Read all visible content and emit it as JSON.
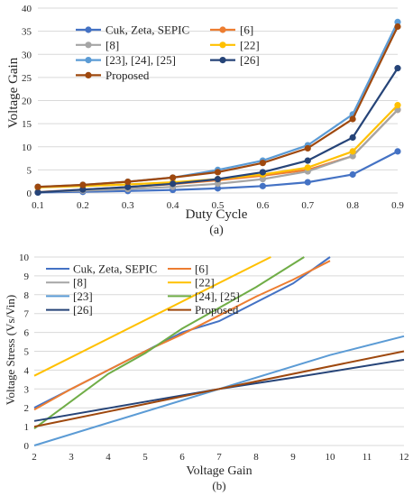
{
  "chart_data": [
    {
      "type": "line",
      "caption": "(a)",
      "xlabel": "Duty Cycle",
      "ylabel": "Voltage Gain",
      "xlim": [
        0.1,
        0.9
      ],
      "ylim": [
        0,
        40
      ],
      "x_ticks": [
        "0.1",
        "0.2",
        "0.3",
        "0.4",
        "0.5",
        "0.6",
        "0.7",
        "0.8",
        "0.9"
      ],
      "y_ticks": [
        "0",
        "5",
        "10",
        "15",
        "20",
        "25",
        "30",
        "35",
        "40"
      ],
      "grid": "horizontal",
      "legend": "top-left",
      "markers": true,
      "x": [
        0.1,
        0.2,
        0.3,
        0.4,
        0.5,
        0.6,
        0.7,
        0.8,
        0.9
      ],
      "series": [
        {
          "name": "Cuk, Zeta, SEPIC",
          "color": "#4472C4",
          "values": [
            0.11,
            0.25,
            0.43,
            0.67,
            1.0,
            1.5,
            2.33,
            4.0,
            9.0
          ]
        },
        {
          "name": "[6]",
          "color": "#ED7D31",
          "values": [
            0.22,
            0.75,
            1.29,
            1.93,
            2.75,
            3.75,
            5.0,
            8.0,
            18.0
          ]
        },
        {
          "name": "[8]",
          "color": "#A5A5A5",
          "values": [
            0.22,
            0.5,
            0.86,
            1.33,
            2.0,
            3.0,
            4.67,
            8.0,
            18.0
          ]
        },
        {
          "name": "[22]",
          "color": "#FFC000",
          "values": [
            1.2,
            1.5,
            1.86,
            2.33,
            3.0,
            4.0,
            5.5,
            9.0,
            19.0
          ]
        },
        {
          "name": "[23], [24], [25]",
          "color": "#5B9BD5",
          "values": [
            1.33,
            1.75,
            2.43,
            3.33,
            5.0,
            7.0,
            10.33,
            17.0,
            37.0
          ]
        },
        {
          "name": "[26]",
          "color": "#264478",
          "values": [
            0.11,
            0.75,
            1.29,
            2.0,
            3.0,
            4.5,
            7.0,
            12.0,
            27.0
          ]
        },
        {
          "name": "Proposed",
          "color": "#9E480E",
          "values": [
            1.33,
            1.75,
            2.43,
            3.33,
            4.5,
            6.5,
            9.67,
            16.0,
            36.0
          ]
        }
      ]
    },
    {
      "type": "line",
      "caption": "(b)",
      "xlabel": "Voltage Gain",
      "ylabel": "Voltage Stress (Vs/Vin)",
      "xlim": [
        2,
        12
      ],
      "ylim": [
        0,
        10
      ],
      "x_ticks": [
        "2",
        "3",
        "4",
        "5",
        "6",
        "7",
        "8",
        "9",
        "10",
        "11",
        "12"
      ],
      "y_ticks": [
        "0",
        "1",
        "2",
        "3",
        "4",
        "5",
        "6",
        "7",
        "8",
        "9",
        "10"
      ],
      "grid": "horizontal",
      "legend": "top-left",
      "markers": false,
      "series": [
        {
          "name": "Cuk, Zeta, SEPIC",
          "color": "#4472C4",
          "points": [
            [
              2,
              2.0
            ],
            [
              6,
              6.0
            ],
            [
              7,
              6.6
            ],
            [
              9,
              8.6
            ],
            [
              10,
              10.0
            ]
          ]
        },
        {
          "name": "[6]",
          "color": "#ED7D31",
          "points": [
            [
              2,
              1.9
            ],
            [
              3,
              3.0
            ],
            [
              4,
              4.0
            ],
            [
              5,
              5.0
            ],
            [
              6,
              5.9
            ],
            [
              7,
              6.9
            ],
            [
              8,
              7.9
            ],
            [
              9,
              8.8
            ],
            [
              10,
              9.8
            ]
          ]
        },
        {
          "name": "[8]",
          "color": "#A5A5A5",
          "points": []
        },
        {
          "name": "[22]",
          "color": "#FFC000",
          "points": [
            [
              2,
              3.7
            ],
            [
              8.4,
              10.0
            ]
          ]
        },
        {
          "name": "[23]",
          "color": "#5B9BD5",
          "points": [
            [
              2,
              0.0
            ],
            [
              10,
              4.8
            ],
            [
              12,
              5.8
            ]
          ]
        },
        {
          "name": "[24], [25]",
          "color": "#70AD47",
          "points": [
            [
              2,
              0.9
            ],
            [
              4,
              3.8
            ],
            [
              5,
              4.9
            ],
            [
              6,
              6.2
            ],
            [
              7,
              7.3
            ],
            [
              8,
              8.4
            ],
            [
              9.3,
              10.0
            ]
          ]
        },
        {
          "name": "[26]",
          "color": "#264478",
          "points": [
            [
              2,
              1.3
            ],
            [
              7,
              3.0
            ],
            [
              9,
              3.6
            ],
            [
              12,
              4.55
            ]
          ]
        },
        {
          "name": "Proposed",
          "color": "#9E480E",
          "points": [
            [
              2,
              1.0
            ],
            [
              7,
              3.0
            ],
            [
              12,
              5.0
            ]
          ]
        }
      ]
    }
  ]
}
